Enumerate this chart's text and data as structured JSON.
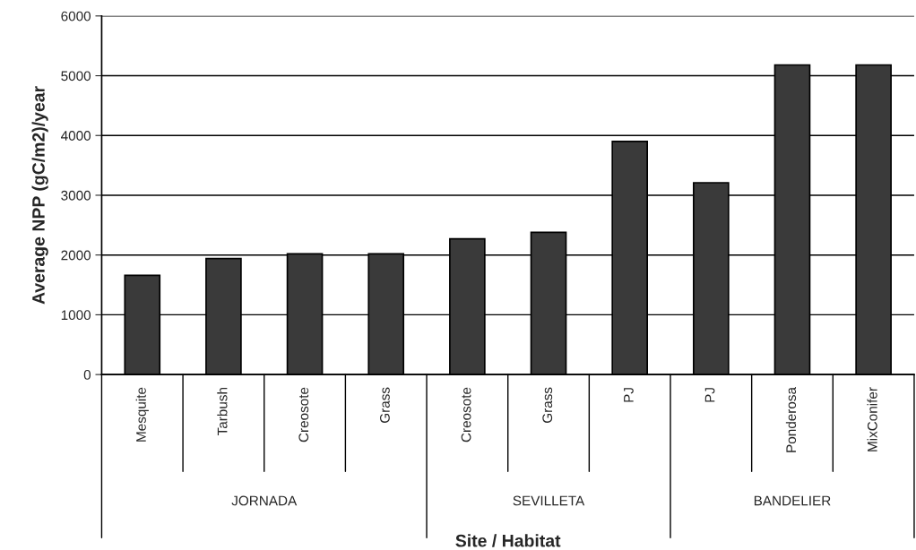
{
  "chart_data": {
    "type": "bar",
    "xlabel": "Site / Habitat",
    "ylabel": "Average NPP (gC/m2)/year",
    "categories": [
      "Mesquite",
      "Tarbush",
      "Creosote",
      "Grass",
      "Creosote",
      "Grass",
      "PJ",
      "PJ",
      "Ponderosa",
      "MixConifer"
    ],
    "values": [
      1660,
      1940,
      2020,
      2020,
      2270,
      2380,
      3900,
      3210,
      5180,
      5180
    ],
    "color": "#3a3a3a",
    "annotations": [
      "JORNADA",
      "SEVILLETA",
      "BANDELIER"
    ],
    "ylim": [
      0,
      6000
    ],
    "yticks": [
      0,
      1000,
      2000,
      3000,
      4000,
      5000,
      6000
    ],
    "grid": "y"
  }
}
